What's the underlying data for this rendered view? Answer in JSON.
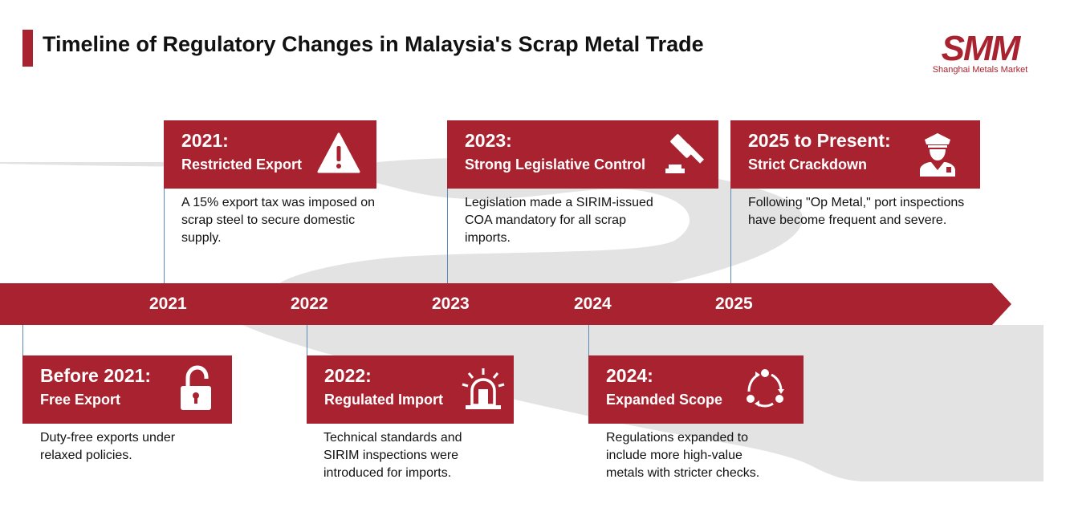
{
  "title": "Timeline of Regulatory Changes in Malaysia's Scrap Metal Trade",
  "logo": {
    "mark": "SMM",
    "subtitle": "Shanghai Metals Market"
  },
  "axis_years": [
    "2021",
    "2022",
    "2023",
    "2024",
    "2025"
  ],
  "events": [
    {
      "heading": "Before 2021:",
      "subheading": "Free Export",
      "icon": "unlock-icon",
      "description": "Duty-free exports under relaxed policies."
    },
    {
      "heading": "2021:",
      "subheading": "Restricted Export",
      "icon": "warning-icon",
      "description": "A 15% export tax was imposed on scrap steel to secure domestic supply."
    },
    {
      "heading": "2022:",
      "subheading": "Regulated Import",
      "icon": "siren-icon",
      "description": "Technical standards and SIRIM inspections were introduced for imports."
    },
    {
      "heading": "2023:",
      "subheading": "Strong Legislative Control",
      "icon": "gavel-icon",
      "description": "Legislation made a SIRIM-issued COA mandatory for all scrap imports."
    },
    {
      "heading": "2024:",
      "subheading": "Expanded Scope",
      "icon": "cycle-arrows-icon",
      "description": "Regulations expanded to include more high-value metals with stricter checks."
    },
    {
      "heading": "2025 to Present:",
      "subheading": "Strict Crackdown",
      "icon": "police-officer-icon",
      "description": "Following \"Op Metal,\" port inspections have become frequent and severe."
    }
  ],
  "colors": {
    "accent": "#a8232f",
    "road": "#e3e3e3",
    "connector": "#5b89b8"
  }
}
